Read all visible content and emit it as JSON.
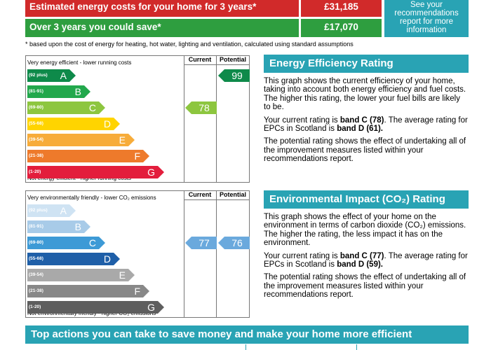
{
  "costs": {
    "estimated_label": "Estimated energy costs for your home for 3 years*",
    "estimated_value": "£31,185",
    "save_label": "Over 3 years you could save*",
    "save_value": "£17,070",
    "see_report": "See your recommendations report for more information",
    "footnote": "* based upon the cost of energy for heating, hot water, lighting and ventilation, calculated using standard assumptions",
    "colors": {
      "estimated": "#d12a2a",
      "save": "#2e9e3f",
      "accent": "#29a3b4"
    }
  },
  "energy_chart": {
    "header_current": "Current",
    "header_potential": "Potential",
    "top_caption": "Very energy efficient - lower running costs",
    "bottom_caption": "Not energy efficient - higher running costs",
    "bands": [
      {
        "range": "(92 plus)",
        "letter": "A",
        "color": "#0e8a4a"
      },
      {
        "range": "(81-91)",
        "letter": "B",
        "color": "#22a84c"
      },
      {
        "range": "(69-80)",
        "letter": "C",
        "color": "#8dc63f"
      },
      {
        "range": "(55-68)",
        "letter": "D",
        "color": "#ffd400"
      },
      {
        "range": "(39-54)",
        "letter": "E",
        "color": "#f7ac3a"
      },
      {
        "range": "(21-38)",
        "letter": "F",
        "color": "#ee7a2b"
      },
      {
        "range": "(1-20)",
        "letter": "G",
        "color": "#e31d3c"
      }
    ],
    "current": {
      "value": "78",
      "band_index": 2,
      "color": "#8dc63f"
    },
    "potential": {
      "value": "99",
      "band_index": 0,
      "color": "#0e8a4a"
    }
  },
  "env_chart": {
    "header_current": "Current",
    "header_potential": "Potential",
    "top_caption": "Very environmentally friendly - lower CO₂ emissions",
    "bottom_caption": "Not environmentally friendly - higher CO₂ emissions",
    "bands": [
      {
        "range": "(92 plus)",
        "letter": "A",
        "color": "#cfe3f3"
      },
      {
        "range": "(81-91)",
        "letter": "B",
        "color": "#a8cbe8"
      },
      {
        "range": "(69-80)",
        "letter": "C",
        "color": "#3d9ad6"
      },
      {
        "range": "(55-68)",
        "letter": "D",
        "color": "#1f5fa8"
      },
      {
        "range": "(39-54)",
        "letter": "E",
        "color": "#a9a9a9"
      },
      {
        "range": "(21-38)",
        "letter": "F",
        "color": "#888888"
      },
      {
        "range": "(1-20)",
        "letter": "G",
        "color": "#5e5e5e"
      }
    ],
    "current": {
      "value": "77",
      "band_index": 2,
      "color": "#6aa9dd"
    },
    "potential": {
      "value": "76",
      "band_index": 2,
      "color": "#6aa9dd"
    }
  },
  "energy_panel": {
    "title": "Energy Efficiency Rating",
    "p1": "This graph shows the current efficiency of your home, taking into account both energy efficiency and fuel costs. The higher this rating, the lower your fuel bills are likely to be.",
    "p2_prefix": "Your current rating is ",
    "p2_bold1": "band C (78)",
    "p2_mid": ". The average rating for EPCs in Scotland is ",
    "p2_bold2": "band D (61).",
    "p3": "The potential rating shows the effect of undertaking all of the improvement measures listed within your recommendations report."
  },
  "env_panel": {
    "title": "Environmental Impact (CO₂) Rating",
    "p1": "This graph shows the effect of your home on the environment in terms of carbon dioxide (CO₂) emissions. The higher the rating, the less impact it has on the environment.",
    "p2_prefix": "Your current rating is ",
    "p2_bold1": "band C (77)",
    "p2_mid": ". The average rating for EPCs in Scotland is ",
    "p2_bold2": "band D (59).",
    "p3": "The potential rating shows the effect of undertaking all of the improvement measures listed within your recommendations report."
  },
  "bottom_banner": "Top actions you can take to save money and make your home more efficient"
}
